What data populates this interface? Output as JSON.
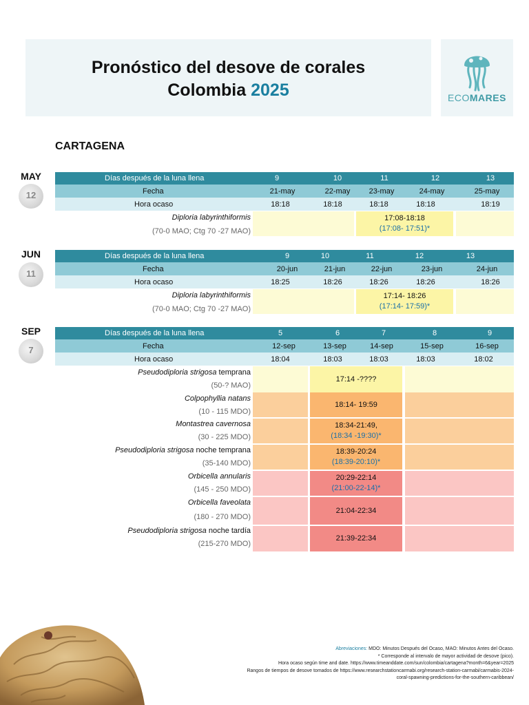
{
  "header": {
    "title_line1": "Pronóstico del desove de corales",
    "title_line2_prefix": "Colombia",
    "title_year": "2025",
    "logo_text_1": "ECO",
    "logo_text_2": "MARES"
  },
  "city": "CARTAGENA",
  "colors": {
    "row_dark": "#2f8b9e",
    "row_mid": "#8fcad6",
    "row_light": "#d9eef3",
    "yellow_light": "#fdfbd5",
    "yellow": "#fcf5a6",
    "orange_light": "#fbcf9c",
    "orange": "#fab66f",
    "pink_light": "#fbc6c4",
    "pink": "#f28a86",
    "accent": "#1a7fa0"
  },
  "labels": {
    "days_after": "Días después de la luna llena",
    "date": "Fecha",
    "sunset": "Hora ocaso"
  },
  "may": {
    "month": "MAY",
    "moon_day": "12",
    "days": [
      "9",
      "10",
      "11",
      "12",
      "13"
    ],
    "dates": [
      "21-may",
      "22-may",
      "23-may",
      "24-may",
      "25-may"
    ],
    "sunset": [
      "18:18",
      "18:18",
      "18:18",
      "18:18",
      "18:19"
    ],
    "species": {
      "name": "Diploria labyrinthiformis",
      "range": "(70-0 MAO; Ctg 70 -27 MAO)",
      "time": "17:08-18:18",
      "peak": "(17:08- 17:51)*"
    }
  },
  "jun": {
    "month": "JUN",
    "moon_day": "11",
    "days": [
      "9",
      "10",
      "11",
      "12",
      "13"
    ],
    "dates": [
      "20-jun",
      "21-jun",
      "22-jun",
      "23-jun",
      "24-jun"
    ],
    "sunset": [
      "18:25",
      "18:26",
      "18:26",
      "18:26",
      "18:26"
    ],
    "species": {
      "name": "Diploria labyrinthiformis",
      "range": "(70-0 MAO; Ctg 70 -27 MAO)",
      "time": "17:14- 18:26",
      "peak": "(17:14- 17:59)*"
    }
  },
  "sep": {
    "month": "SEP",
    "moon_day": "7",
    "days": [
      "5",
      "6",
      "7",
      "8",
      "9"
    ],
    "dates": [
      "12-sep",
      "13-sep",
      "14-sep",
      "15-sep",
      "16-sep"
    ],
    "sunset": [
      "18:04",
      "18:03",
      "18:03",
      "18:03",
      "18:02"
    ],
    "species": [
      {
        "name": "Pseudodiploria strigosa",
        "suffix": " temprana",
        "range": "(50-? MAO)",
        "time": "17:14 -????",
        "peak": ""
      },
      {
        "name": "Colpophyllia natans",
        "suffix": "",
        "range": "(10 - 115 MDO)",
        "time": "18:14- 19:59",
        "peak": ""
      },
      {
        "name": "Montastrea cavernosa",
        "suffix": "",
        "range": "(30 - 225 MDO)",
        "time": "18:34-21:49,",
        "peak": "(18:34 -19:30)*"
      },
      {
        "name": "Pseudodiploria strigosa",
        "suffix": "  noche temprana",
        "range": "(35-140 MDO)",
        "time": "18:39-20:24",
        "peak": "(18:39-20:10)*"
      },
      {
        "name": "Orbicella annularis",
        "suffix": "",
        "range": "(145 - 250 MDO)",
        "time": "20:29-22:14",
        "peak": "(21:00-22-14)*"
      },
      {
        "name": "Orbicella faveolata",
        "suffix": "",
        "range": "(180 - 270 MDO)",
        "time": "21:04-22:34",
        "peak": ""
      },
      {
        "name": "Pseudodiploria strigosa",
        "suffix": "  noche tardía",
        "range": "(215-270 MDO)",
        "time": "21:39-22:34",
        "peak": ""
      }
    ]
  },
  "footer": {
    "abbr_label": "Abreviaciones:",
    "abbr_text": " MDO: Minutos Después del Ocaso, MAO: Minutos Antes del Ocaso.",
    "note": "* Corresponde al intervalo de mayor actividad de desove (pico).",
    "source1": "Hora ocaso según time and date. https://www.timeanddate.com/sun/colombia/cartagena?month=6&year=2025",
    "source2": "Rangos de tiempos de desove tomados de https://www.researchstationcarmabi.org/research-station-carmabi/carmabis-2024-",
    "source3": "coral-spawning-predictions-for-the-southern-caribbean/"
  }
}
